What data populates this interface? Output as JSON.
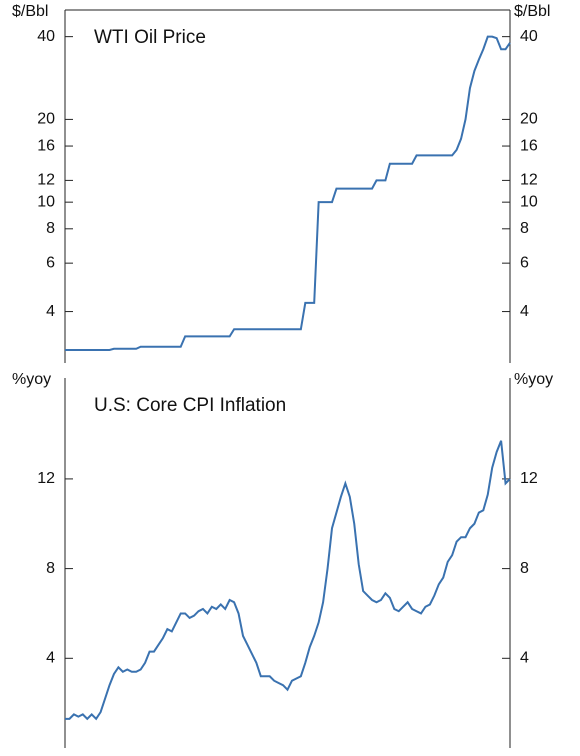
{
  "chart_data": [
    {
      "type": "line",
      "title": "WTI Oil Price",
      "y_label": "$/Bbl",
      "log_scale": true,
      "color": "#3a72b0",
      "ylim": [
        2.6,
        50
      ],
      "yticks": [
        4,
        6,
        8,
        10,
        12,
        16,
        20,
        40
      ],
      "values": [
        2.9,
        2.9,
        2.9,
        2.9,
        2.9,
        2.9,
        2.9,
        2.9,
        2.9,
        2.9,
        2.9,
        2.93,
        2.93,
        2.93,
        2.93,
        2.93,
        2.93,
        2.98,
        2.98,
        2.98,
        2.98,
        2.98,
        2.98,
        2.98,
        2.98,
        2.98,
        2.98,
        3.25,
        3.25,
        3.25,
        3.25,
        3.25,
        3.25,
        3.25,
        3.25,
        3.25,
        3.25,
        3.25,
        3.45,
        3.45,
        3.45,
        3.45,
        3.45,
        3.45,
        3.45,
        3.45,
        3.45,
        3.45,
        3.45,
        3.45,
        3.45,
        3.45,
        3.45,
        3.45,
        4.3,
        4.3,
        4.3,
        10,
        10,
        10,
        10,
        11.2,
        11.2,
        11.2,
        11.2,
        11.2,
        11.2,
        11.2,
        11.2,
        11.2,
        12,
        12,
        12,
        13.8,
        13.8,
        13.8,
        13.8,
        13.8,
        13.8,
        14.8,
        14.8,
        14.8,
        14.8,
        14.8,
        14.8,
        14.8,
        14.8,
        14.8,
        15.5,
        17,
        20,
        26,
        30,
        33,
        36,
        40,
        40,
        39.5,
        36,
        36,
        38
      ]
    },
    {
      "type": "line",
      "title": "U.S: Core CPI Inflation",
      "y_label": "%yoy",
      "color": "#3a72b0",
      "ylim": [
        0,
        16.5
      ],
      "yticks": [
        4,
        8,
        12
      ],
      "values": [
        1.3,
        1.3,
        1.5,
        1.4,
        1.5,
        1.3,
        1.5,
        1.3,
        1.6,
        2.2,
        2.8,
        3.3,
        3.6,
        3.4,
        3.5,
        3.4,
        3.4,
        3.5,
        3.8,
        4.3,
        4.3,
        4.6,
        4.9,
        5.3,
        5.2,
        5.6,
        6.0,
        6.0,
        5.8,
        5.9,
        6.1,
        6.2,
        6.0,
        6.3,
        6.2,
        6.4,
        6.2,
        6.6,
        6.5,
        6.0,
        5.0,
        4.6,
        4.2,
        3.8,
        3.2,
        3.2,
        3.2,
        3.0,
        2.9,
        2.8,
        2.6,
        3.0,
        3.1,
        3.2,
        3.8,
        4.5,
        5.0,
        5.6,
        6.5,
        8.0,
        9.8,
        10.5,
        11.2,
        11.8,
        11.2,
        10.0,
        8.2,
        7.0,
        6.8,
        6.6,
        6.5,
        6.6,
        6.9,
        6.7,
        6.2,
        6.1,
        6.3,
        6.5,
        6.2,
        6.1,
        6.0,
        6.3,
        6.4,
        6.8,
        7.3,
        7.6,
        8.3,
        8.6,
        9.2,
        9.4,
        9.4,
        9.8,
        10.0,
        10.5,
        10.6,
        11.3,
        12.5,
        13.2,
        13.7,
        11.8,
        12.0
      ]
    }
  ]
}
